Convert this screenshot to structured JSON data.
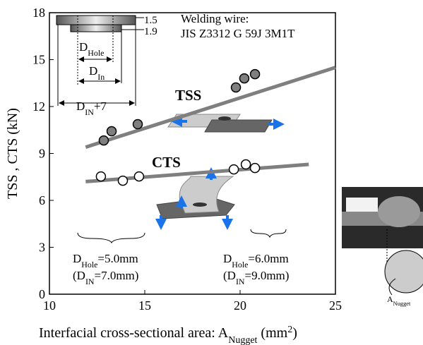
{
  "chart_data": {
    "type": "scatter",
    "xlabel": [
      {
        "t": "Interfacial cross-sectional area: A"
      },
      {
        "t": "Nugget",
        "sub": true
      },
      {
        "t": " (mm"
      },
      {
        "t": "2",
        "sup": true
      },
      {
        "t": ")"
      }
    ],
    "ylabel": "TSS , CTS (kN)",
    "xlim": [
      10,
      25
    ],
    "ylim": [
      0,
      18
    ],
    "xticks": [
      10,
      15,
      20,
      25
    ],
    "yticks": [
      0,
      3,
      6,
      9,
      12,
      15,
      18
    ],
    "series": [
      {
        "name": "TSS",
        "marker": "filled",
        "color": "#7f7f7f",
        "x": [
          12.85,
          13.26,
          14.63,
          19.78,
          20.22,
          20.78
        ],
        "values": [
          9.83,
          10.42,
          10.87,
          13.22,
          13.8,
          14.07
        ]
      },
      {
        "name": "CTS",
        "marker": "open",
        "color": "#ffffff",
        "x": [
          12.7,
          13.85,
          14.7,
          19.67,
          20.3,
          20.78
        ],
        "values": [
          7.53,
          7.26,
          7.53,
          7.98,
          8.3,
          8.07
        ]
      }
    ],
    "trend_lines": [
      {
        "color": "#7f7f7f",
        "x": [
          11.9,
          25
        ],
        "values": [
          9.4,
          14.5
        ]
      },
      {
        "color": "#7f7f7f",
        "x": [
          11.9,
          23.6
        ],
        "values": [
          7.2,
          8.3
        ]
      }
    ],
    "annotations": [
      [
        {
          "t": "Welding wire:"
        }
      ],
      [
        {
          "t": "JIS Z3312 G 59J 3M1T"
        }
      ],
      [
        {
          "t": "1.5"
        }
      ],
      [
        {
          "t": "1.9"
        }
      ],
      [
        {
          "t": "D"
        },
        {
          "t": "Hole",
          "sub": true
        }
      ],
      [
        {
          "t": "D"
        },
        {
          "t": "In",
          "sub": true
        }
      ],
      [
        {
          "t": "D"
        },
        {
          "t": "IN",
          "sub": true
        },
        {
          "t": "+7"
        }
      ],
      [
        {
          "t": "D"
        },
        {
          "t": "Hole",
          "sub": true
        },
        {
          "t": "=5.0mm"
        }
      ],
      [
        {
          "t": "(D"
        },
        {
          "t": "IN",
          "sub": true
        },
        {
          "t": "=7.0mm)"
        }
      ],
      [
        {
          "t": "D"
        },
        {
          "t": "Hole",
          "sub": true
        },
        {
          "t": "=6.0mm"
        }
      ],
      [
        {
          "t": "(D"
        },
        {
          "t": "IN",
          "sub": true
        },
        {
          "t": "=9.0mm)"
        }
      ],
      [
        {
          "t": "A"
        },
        {
          "t": "Nugget",
          "sub": true
        }
      ]
    ]
  }
}
